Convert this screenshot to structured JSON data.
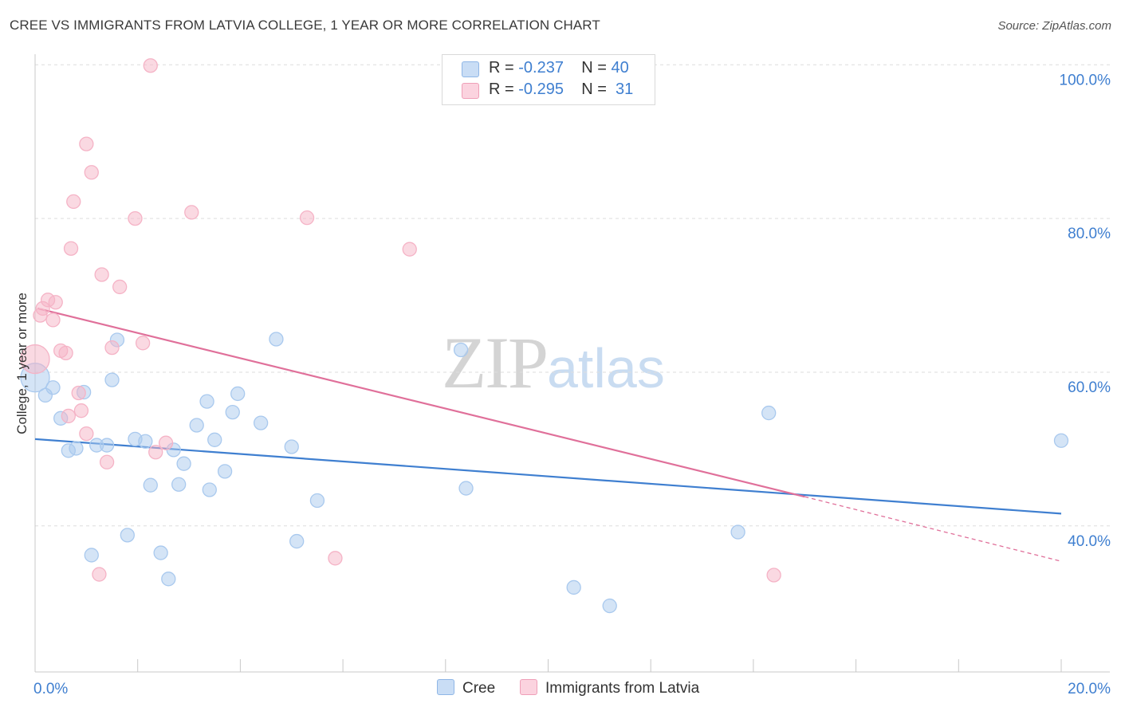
{
  "title": "CREE VS IMMIGRANTS FROM LATVIA COLLEGE, 1 YEAR OR MORE CORRELATION CHART",
  "source": "Source: ZipAtlas.com",
  "watermark": {
    "zip": "ZIP",
    "atlas": "atlas"
  },
  "stats": [
    {
      "r_label": "R =",
      "r_value": "-0.237",
      "n_label": "N =",
      "n_value": "40",
      "color": "#a9c9ee"
    },
    {
      "r_label": "R =",
      "r_value": "-0.295",
      "n_label": "N =",
      "n_value": "31",
      "color": "#f5b3c6"
    }
  ],
  "legend": [
    {
      "label": "Cree",
      "color": "#a9c9ee"
    },
    {
      "label": "Immigrants from Latvia",
      "color": "#f5b3c6"
    }
  ],
  "chart_data": {
    "type": "scatter",
    "title": "CREE VS IMMIGRANTS FROM LATVIA COLLEGE, 1 YEAR OR MORE CORRELATION CHART",
    "ylabel": "College, 1 year or more",
    "xlabel": "",
    "xlim": [
      0,
      20
    ],
    "ylim": [
      21,
      102
    ],
    "x_ticks": [
      0,
      20
    ],
    "x_tick_labels": [
      "0.0%",
      "20.0%"
    ],
    "y_ticks": [
      40,
      60,
      80,
      100
    ],
    "y_tick_labels": [
      "40.0%",
      "60.0%",
      "80.0%",
      "100.0%"
    ],
    "grid": true,
    "legend_position": "bottom",
    "series": [
      {
        "name": "Cree",
        "color": "#3f7fd0",
        "fill": "#a9c9ee",
        "points": [
          [
            0.0,
            59.3
          ],
          [
            0.2,
            57.0
          ],
          [
            0.35,
            58.0
          ],
          [
            0.5,
            54.0
          ],
          [
            0.65,
            49.8
          ],
          [
            0.8,
            50.1
          ],
          [
            0.95,
            57.4
          ],
          [
            1.2,
            50.5
          ],
          [
            1.4,
            50.5
          ],
          [
            1.5,
            59.0
          ],
          [
            1.6,
            64.2
          ],
          [
            1.8,
            38.8
          ],
          [
            1.95,
            51.3
          ],
          [
            2.15,
            51.0
          ],
          [
            2.25,
            45.3
          ],
          [
            2.45,
            36.5
          ],
          [
            2.6,
            33.1
          ],
          [
            2.7,
            49.9
          ],
          [
            2.8,
            45.4
          ],
          [
            2.9,
            48.1
          ],
          [
            3.15,
            53.1
          ],
          [
            3.35,
            56.2
          ],
          [
            3.4,
            44.7
          ],
          [
            3.5,
            51.2
          ],
          [
            3.7,
            47.1
          ],
          [
            3.85,
            54.8
          ],
          [
            3.95,
            57.2
          ],
          [
            4.4,
            53.4
          ],
          [
            4.7,
            64.3
          ],
          [
            5.0,
            50.3
          ],
          [
            5.1,
            38.0
          ],
          [
            5.5,
            43.3
          ],
          [
            1.1,
            36.2
          ],
          [
            8.3,
            62.9
          ],
          [
            8.4,
            44.9
          ],
          [
            10.5,
            32.0
          ],
          [
            11.2,
            29.6
          ],
          [
            13.7,
            39.2
          ],
          [
            14.3,
            54.7
          ],
          [
            20.0,
            51.1
          ]
        ],
        "trend": {
          "x": [
            0,
            20
          ],
          "y": [
            51.3,
            41.6
          ]
        }
      },
      {
        "name": "Immigrants from Latvia",
        "color": "#e0709a",
        "fill": "#f5b3c6",
        "points": [
          [
            0.0,
            61.7
          ],
          [
            0.1,
            67.4
          ],
          [
            0.15,
            68.3
          ],
          [
            0.25,
            69.4
          ],
          [
            0.35,
            66.8
          ],
          [
            0.4,
            69.1
          ],
          [
            0.5,
            62.8
          ],
          [
            0.6,
            62.5
          ],
          [
            0.65,
            54.3
          ],
          [
            0.75,
            82.2
          ],
          [
            0.7,
            76.1
          ],
          [
            0.85,
            57.3
          ],
          [
            0.9,
            55.0
          ],
          [
            1.0,
            52.0
          ],
          [
            1.0,
            89.7
          ],
          [
            1.1,
            86.0
          ],
          [
            1.25,
            33.7
          ],
          [
            1.3,
            72.7
          ],
          [
            1.4,
            48.3
          ],
          [
            1.5,
            63.2
          ],
          [
            1.65,
            71.1
          ],
          [
            1.95,
            80.0
          ],
          [
            2.1,
            63.8
          ],
          [
            2.25,
            99.9
          ],
          [
            2.35,
            49.6
          ],
          [
            2.55,
            50.8
          ],
          [
            3.05,
            80.8
          ],
          [
            5.3,
            80.1
          ],
          [
            5.85,
            35.8
          ],
          [
            7.3,
            76.0
          ],
          [
            14.4,
            33.6
          ]
        ],
        "trend": {
          "x": [
            0.05,
            15.0
          ],
          "y": [
            68.3,
            43.8
          ]
        },
        "trend_extension": {
          "x": [
            15.0,
            20.0
          ],
          "y": [
            43.8,
            35.4
          ]
        }
      }
    ]
  }
}
